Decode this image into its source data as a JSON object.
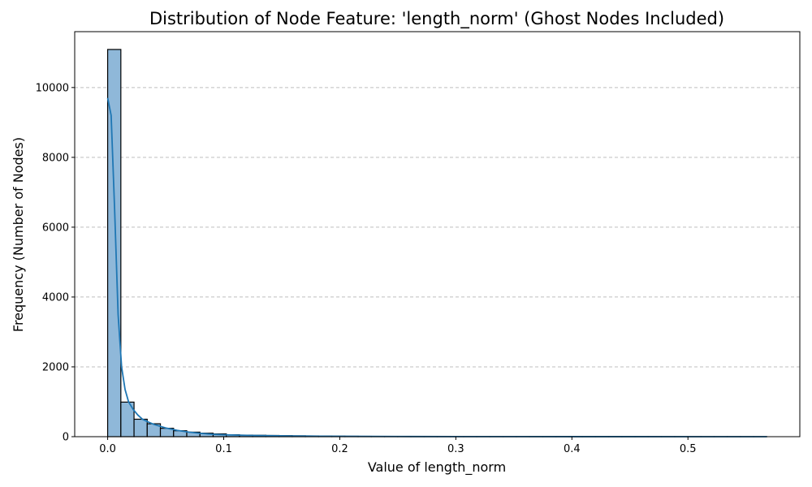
{
  "chart_data": {
    "type": "bar",
    "title": "Distribution of Node Feature: 'length_norm' (Ghost Nodes Included)",
    "xlabel": "Value of length_norm",
    "ylabel": "Frequency (Number of Nodes)",
    "xlim": [
      -0.0284,
      0.5964
    ],
    "ylim": [
      0,
      11600
    ],
    "xticks": [
      0.0,
      0.1,
      0.2,
      0.3,
      0.4,
      0.5
    ],
    "xtick_labels": [
      "0.0",
      "0.1",
      "0.2",
      "0.3",
      "0.4",
      "0.5"
    ],
    "yticks": [
      0,
      2000,
      4000,
      6000,
      8000,
      10000
    ],
    "ytick_labels": [
      "0",
      "2000",
      "4000",
      "6000",
      "8000",
      "10000"
    ],
    "grid": "horizontal dashed",
    "bin_start": 0.0,
    "bin_width": 0.01136,
    "counts": [
      11090,
      990,
      500,
      370,
      240,
      170,
      130,
      100,
      80,
      55,
      45,
      40,
      35,
      30,
      25,
      22,
      18,
      15,
      12,
      10,
      9,
      8,
      7,
      6,
      5,
      5,
      4,
      4,
      3,
      3,
      3,
      2,
      2,
      2,
      2,
      2,
      1,
      1,
      1,
      1,
      1,
      1,
      1,
      1,
      1,
      1,
      1,
      1,
      1,
      1
    ],
    "kde": {
      "x": [
        0.0,
        0.003,
        0.006,
        0.009,
        0.012,
        0.015,
        0.018,
        0.022,
        0.026,
        0.03,
        0.035,
        0.04,
        0.05,
        0.06,
        0.07,
        0.08,
        0.09,
        0.1,
        0.12,
        0.14,
        0.16,
        0.18,
        0.2,
        0.25,
        0.3,
        0.35,
        0.4,
        0.45,
        0.5,
        0.568
      ],
      "y": [
        9700,
        9200,
        6500,
        3500,
        2000,
        1350,
        1000,
        780,
        620,
        500,
        420,
        350,
        250,
        180,
        130,
        95,
        70,
        55,
        38,
        28,
        20,
        14,
        10,
        5,
        3,
        2,
        1,
        1,
        0,
        0
      ]
    },
    "colors": {
      "bar_fill": "#8fb8d9",
      "bar_edge": "#000000",
      "kde_line": "#1f77b4",
      "grid": "#bfbfbf"
    }
  }
}
